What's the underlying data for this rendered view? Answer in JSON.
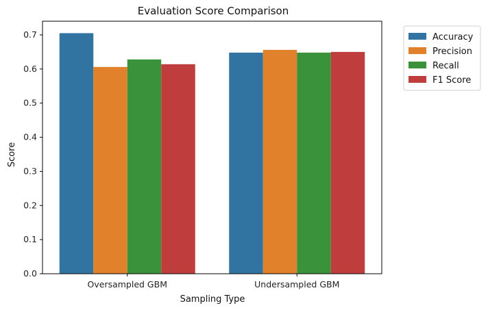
{
  "chart_data": {
    "type": "bar",
    "title": "Evaluation Score Comparison",
    "xlabel": "Sampling Type",
    "ylabel": "Score",
    "categories": [
      "Oversampled GBM",
      "Undersampled GBM"
    ],
    "series": [
      {
        "name": "Accuracy",
        "values": [
          0.705,
          0.648
        ],
        "color": "#3274a1"
      },
      {
        "name": "Precision",
        "values": [
          0.606,
          0.656
        ],
        "color": "#e1812c"
      },
      {
        "name": "Recall",
        "values": [
          0.628,
          0.648
        ],
        "color": "#3a923a"
      },
      {
        "name": "F1 Score",
        "values": [
          0.614,
          0.65
        ],
        "color": "#c03d3e"
      }
    ],
    "ylim": [
      0,
      0.74
    ],
    "yticks": [
      "0.0",
      "0.1",
      "0.2",
      "0.3",
      "0.4",
      "0.5",
      "0.6",
      "0.7"
    ],
    "grid": false,
    "legend_position": "outside-top-right"
  }
}
